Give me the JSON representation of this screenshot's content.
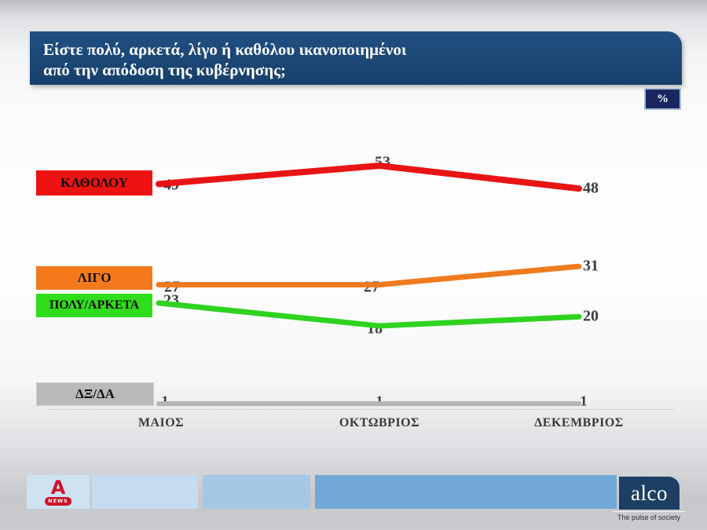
{
  "header": {
    "title_line1": "Είστε πολύ, αρκετά, λίγο ή καθόλου ικανοποιημένοι",
    "title_line2": "από την απόδοση της κυβέρνησης;"
  },
  "percent_badge": {
    "label": "%"
  },
  "chart_data": {
    "type": "line",
    "title": "Είστε πολύ, αρκετά, λίγο ή καθόλου ικανοποιημένοι από την απόδοση της κυβέρνησης;",
    "categories": [
      "ΜΑΙΟΣ",
      "ΟΚΤΩΒΡΙΟΣ",
      "ΔΕΚΕΜΒΡΙΟΣ"
    ],
    "series": [
      {
        "name": "ΚΑΘΟΛΟΥ",
        "color": "#e81414",
        "values": [
          49,
          53,
          48
        ]
      },
      {
        "name": "ΛΙΓΟ",
        "color": "#ef7b1e",
        "values": [
          27,
          27,
          31
        ]
      },
      {
        "name": "ΠΟΛΥ/ΑΡΚΕΤΑ",
        "color": "#2fd31f",
        "values": [
          23,
          18,
          20
        ]
      },
      {
        "name": "ΔΞ/ΔΑ",
        "color": "#b4b4b4",
        "values": [
          1,
          1,
          1
        ]
      }
    ],
    "ylim": [
      0,
      60
    ],
    "grid": false,
    "legend_position": "left",
    "value_label_color": "#3d3d3d",
    "unit": "%"
  },
  "footer": {
    "alpha_logo": {
      "letter": "A",
      "news_label": "NEWS"
    },
    "alco": {
      "name": "alco",
      "tagline": "The pulse of society"
    }
  }
}
